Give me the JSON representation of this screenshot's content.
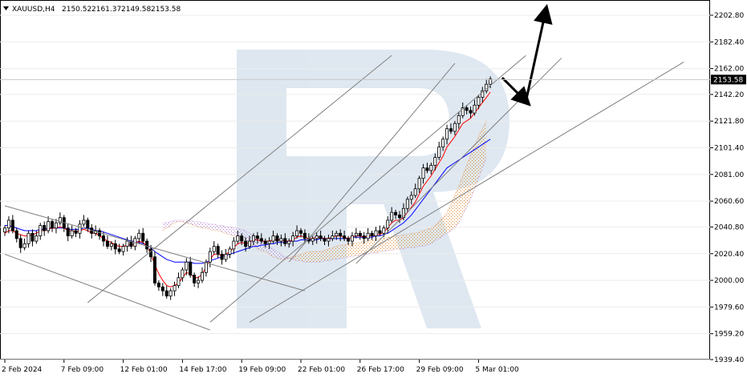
{
  "chart_data": {
    "type": "candlestick",
    "header": {
      "symbol": "XAUUSD,H4",
      "open": "2150.52",
      "high": "2161.37",
      "low": "2149.58",
      "close": "2153.58"
    },
    "current_price": 2153.58,
    "current_price_label": "2153.58",
    "ylim": [
      1939.4,
      2210
    ],
    "y_ticks": [
      {
        "v": 2202.8,
        "label": "2202.80"
      },
      {
        "v": 2182.4,
        "label": "2182.40"
      },
      {
        "v": 2162.0,
        "label": "2162.00"
      },
      {
        "v": 2142.2,
        "label": "2142.20"
      },
      {
        "v": 2121.8,
        "label": "2121.80"
      },
      {
        "v": 2101.4,
        "label": "2101.40"
      },
      {
        "v": 2081.0,
        "label": "2081.00"
      },
      {
        "v": 2060.6,
        "label": "2060.60"
      },
      {
        "v": 2040.8,
        "label": "2040.80"
      },
      {
        "v": 2020.4,
        "label": "2020.40"
      },
      {
        "v": 2000.0,
        "label": "2000.00"
      },
      {
        "v": 1979.6,
        "label": "1979.60"
      },
      {
        "v": 1959.2,
        "label": "1959.20"
      },
      {
        "v": 1939.4,
        "label": "1939.40"
      }
    ],
    "x_ticks": [
      {
        "i": 0,
        "label": "2 Feb 2024"
      },
      {
        "i": 15,
        "label": "7 Feb 09:00"
      },
      {
        "i": 30,
        "label": "12 Feb 01:00"
      },
      {
        "i": 45,
        "label": "14 Feb 17:00"
      },
      {
        "i": 60,
        "label": "19 Feb 09:00"
      },
      {
        "i": 75,
        "label": "22 Feb 01:00"
      },
      {
        "i": 90,
        "label": "26 Feb 17:00"
      },
      {
        "i": 105,
        "label": "29 Feb 09:00"
      },
      {
        "i": 120,
        "label": "5 Mar 01:00"
      }
    ],
    "close": [
      2040,
      2046,
      2038,
      2032,
      2025,
      2028,
      2036,
      2030,
      2034,
      2042,
      2038,
      2045,
      2040,
      2044,
      2048,
      2040,
      2034,
      2038,
      2036,
      2043,
      2046,
      2040,
      2036,
      2038,
      2034,
      2030,
      2026,
      2028,
      2024,
      2022,
      2026,
      2030,
      2026,
      2032,
      2036,
      2030,
      2024,
      2018,
      1998,
      1995,
      1992,
      1988,
      1992,
      1996,
      2002,
      2008,
      2014,
      2004,
      1998,
      2000,
      2006,
      2014,
      2022,
      2026,
      2020,
      2016,
      2020,
      2024,
      2030,
      2034,
      2030,
      2026,
      2030,
      2034,
      2032,
      2030,
      2028,
      2030,
      2034,
      2030,
      2032,
      2028,
      2030,
      2034,
      2038,
      2036,
      2032,
      2030,
      2032,
      2034,
      2032,
      2030,
      2032,
      2034,
      2036,
      2034,
      2032,
      2030,
      2034,
      2036,
      2034,
      2032,
      2036,
      2034,
      2038,
      2036,
      2040,
      2046,
      2052,
      2050,
      2048,
      2055,
      2062,
      2065,
      2070,
      2078,
      2086,
      2084,
      2088,
      2094,
      2102,
      2108,
      2116,
      2114,
      2120,
      2126,
      2132,
      2130,
      2128,
      2134,
      2140,
      2145,
      2150,
      2154
    ],
    "tenkan": [
      2036,
      2038,
      2038,
      2036,
      2035,
      2034,
      2034,
      2035,
      2036,
      2038,
      2038,
      2039,
      2040,
      2040,
      2041,
      2040,
      2038,
      2038,
      2037,
      2038,
      2039,
      2038,
      2036,
      2036,
      2034,
      2032,
      2030,
      2029,
      2027,
      2026,
      2026,
      2027,
      2027,
      2028,
      2030,
      2029,
      2026,
      2020,
      2012,
      2005,
      2000,
      1996,
      1995,
      1996,
      1998,
      2002,
      2006,
      2005,
      2002,
      2002,
      2005,
      2010,
      2016,
      2020,
      2020,
      2019,
      2020,
      2022,
      2025,
      2028,
      2029,
      2028,
      2029,
      2031,
      2031,
      2030,
      2030,
      2030,
      2031,
      2031,
      2031,
      2030,
      2030,
      2031,
      2033,
      2034,
      2033,
      2032,
      2032,
      2033,
      2033,
      2032,
      2032,
      2033,
      2034,
      2034,
      2033,
      2032,
      2033,
      2034,
      2034,
      2033,
      2034,
      2034,
      2035,
      2035,
      2037,
      2040,
      2044,
      2046,
      2046,
      2048,
      2052,
      2056,
      2060,
      2066,
      2072,
      2076,
      2080,
      2085,
      2090,
      2095,
      2102,
      2106,
      2110,
      2115,
      2120,
      2122,
      2124,
      2128,
      2132,
      2136,
      2140,
      2144
    ],
    "kijun": [
      2042,
      2042,
      2041,
      2040,
      2039,
      2038,
      2038,
      2038,
      2038,
      2039,
      2039,
      2040,
      2040,
      2040,
      2040,
      2040,
      2039,
      2039,
      2039,
      2039,
      2040,
      2040,
      2039,
      2038,
      2038,
      2037,
      2036,
      2035,
      2034,
      2033,
      2032,
      2031,
      2030,
      2030,
      2029,
      2028,
      2027,
      2025,
      2022,
      2020,
      2018,
      2016,
      2015,
      2014,
      2014,
      2014,
      2014,
      2014,
      2013,
      2013,
      2013,
      2014,
      2015,
      2016,
      2017,
      2018,
      2019,
      2020,
      2021,
      2022,
      2023,
      2024,
      2025,
      2026,
      2026,
      2027,
      2027,
      2028,
      2028,
      2029,
      2029,
      2029,
      2030,
      2030,
      2030,
      2031,
      2031,
      2031,
      2031,
      2031,
      2032,
      2032,
      2032,
      2032,
      2032,
      2032,
      2032,
      2032,
      2033,
      2033,
      2033,
      2033,
      2033,
      2033,
      2034,
      2034,
      2035,
      2036,
      2038,
      2040,
      2042,
      2044,
      2047,
      2050,
      2054,
      2058,
      2062,
      2066,
      2070,
      2074,
      2078,
      2082,
      2086,
      2088,
      2090,
      2092,
      2094,
      2096,
      2098,
      2100,
      2102,
      2104,
      2106,
      2108
    ],
    "cloud": {
      "span_a": [
        2038,
        2040,
        2042,
        2044,
        2045,
        2045,
        2044,
        2043,
        2042,
        2041,
        2040,
        2040,
        2039,
        2038,
        2038,
        2037,
        2036,
        2035,
        2034,
        2033,
        2032,
        2030,
        2028,
        2026,
        2024,
        2023,
        2022,
        2020,
        2018,
        2017,
        2016,
        2016,
        2017,
        2018,
        2019,
        2020,
        2021,
        2022,
        2022,
        2022,
        2022,
        2023,
        2024,
        2025,
        2026,
        2027,
        2027,
        2028,
        2028,
        2029,
        2029,
        2030,
        2030,
        2031,
        2031,
        2032,
        2032,
        2033,
        2033,
        2034,
        2034,
        2035,
        2035,
        2036,
        2036,
        2037,
        2038,
        2039,
        2040,
        2042,
        2045,
        2048,
        2052,
        2058,
        2065,
        2072,
        2080,
        2088,
        2096,
        2103,
        2110,
        2116,
        2122
      ],
      "span_b": [
        2044,
        2044,
        2045,
        2046,
        2046,
        2046,
        2046,
        2046,
        2045,
        2045,
        2044,
        2044,
        2043,
        2043,
        2042,
        2042,
        2041,
        2041,
        2040,
        2040,
        2039,
        2038,
        2036,
        2034,
        2032,
        2030,
        2028,
        2026,
        2024,
        2022,
        2020,
        2018,
        2017,
        2016,
        2015,
        2015,
        2014,
        2014,
        2014,
        2014,
        2014,
        2015,
        2015,
        2016,
        2016,
        2017,
        2017,
        2018,
        2018,
        2019,
        2019,
        2020,
        2020,
        2021,
        2021,
        2022,
        2022,
        2023,
        2023,
        2024,
        2024,
        2024,
        2025,
        2025,
        2025,
        2026,
        2026,
        2027,
        2028,
        2030,
        2032,
        2034,
        2036,
        2038,
        2040,
        2044,
        2050,
        2056,
        2062,
        2070,
        2078,
        2086,
        2094
      ],
      "offset": 40
    },
    "trend_lines": [
      {
        "from": [
          0,
          2057
        ],
        "to": [
          76,
          1992
        ]
      },
      {
        "from": [
          0,
          2020
        ],
        "to": [
          52,
          1962
        ]
      },
      {
        "from": [
          21,
          1983
        ],
        "to": [
          98,
          2172
        ]
      },
      {
        "from": [
          52,
          1968
        ],
        "to": [
          132,
          2172
        ]
      },
      {
        "from": [
          72,
          2014
        ],
        "to": [
          114,
          2166
        ]
      },
      {
        "from": [
          89,
          2013
        ],
        "to": [
          141,
          2170
        ]
      },
      {
        "from": [
          62,
          1968
        ],
        "to": [
          172,
          2167
        ]
      }
    ],
    "arrows": [
      {
        "from": [
          126,
          2155
        ],
        "to": [
          132,
          2137
        ]
      },
      {
        "from": [
          132,
          2137
        ],
        "to": [
          137,
          2206
        ]
      }
    ]
  }
}
